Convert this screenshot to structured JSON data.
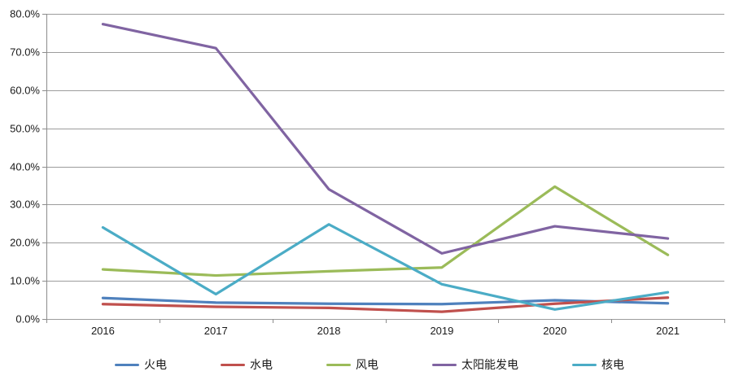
{
  "chart_data": {
    "type": "line",
    "title": "",
    "xlabel": "",
    "ylabel": "",
    "categories": [
      "2016",
      "2017",
      "2018",
      "2019",
      "2020",
      "2021"
    ],
    "series": [
      {
        "name": "火电",
        "color": "#4F81BD",
        "values": [
          5.5,
          4.3,
          4.0,
          3.9,
          4.9,
          4.1
        ]
      },
      {
        "name": "水电",
        "color": "#C0504D",
        "values": [
          3.9,
          3.2,
          2.9,
          1.9,
          4.0,
          5.6
        ]
      },
      {
        "name": "风电",
        "color": "#9BBB59",
        "values": [
          13.0,
          11.4,
          12.5,
          13.5,
          34.7,
          16.8
        ]
      },
      {
        "name": "太阳能发电",
        "color": "#8064A2",
        "values": [
          77.3,
          71.0,
          34.0,
          17.2,
          24.3,
          21.1
        ]
      },
      {
        "name": "核电",
        "color": "#4BACC6",
        "values": [
          24.0,
          6.5,
          24.8,
          9.1,
          2.5,
          7.0
        ]
      }
    ],
    "ylim": [
      0,
      80
    ],
    "ytick_step": 10,
    "ytick_labels": [
      "0.0%",
      "10.0%",
      "20.0%",
      "30.0%",
      "40.0%",
      "50.0%",
      "60.0%",
      "70.0%",
      "80.0%"
    ],
    "grid": true,
    "legend_position": "bottom"
  },
  "colors": {
    "background": "#FFFFFF",
    "gridline": "#9C9C9C",
    "axis": "#8C8C8C",
    "text": "#1A1A1A"
  }
}
